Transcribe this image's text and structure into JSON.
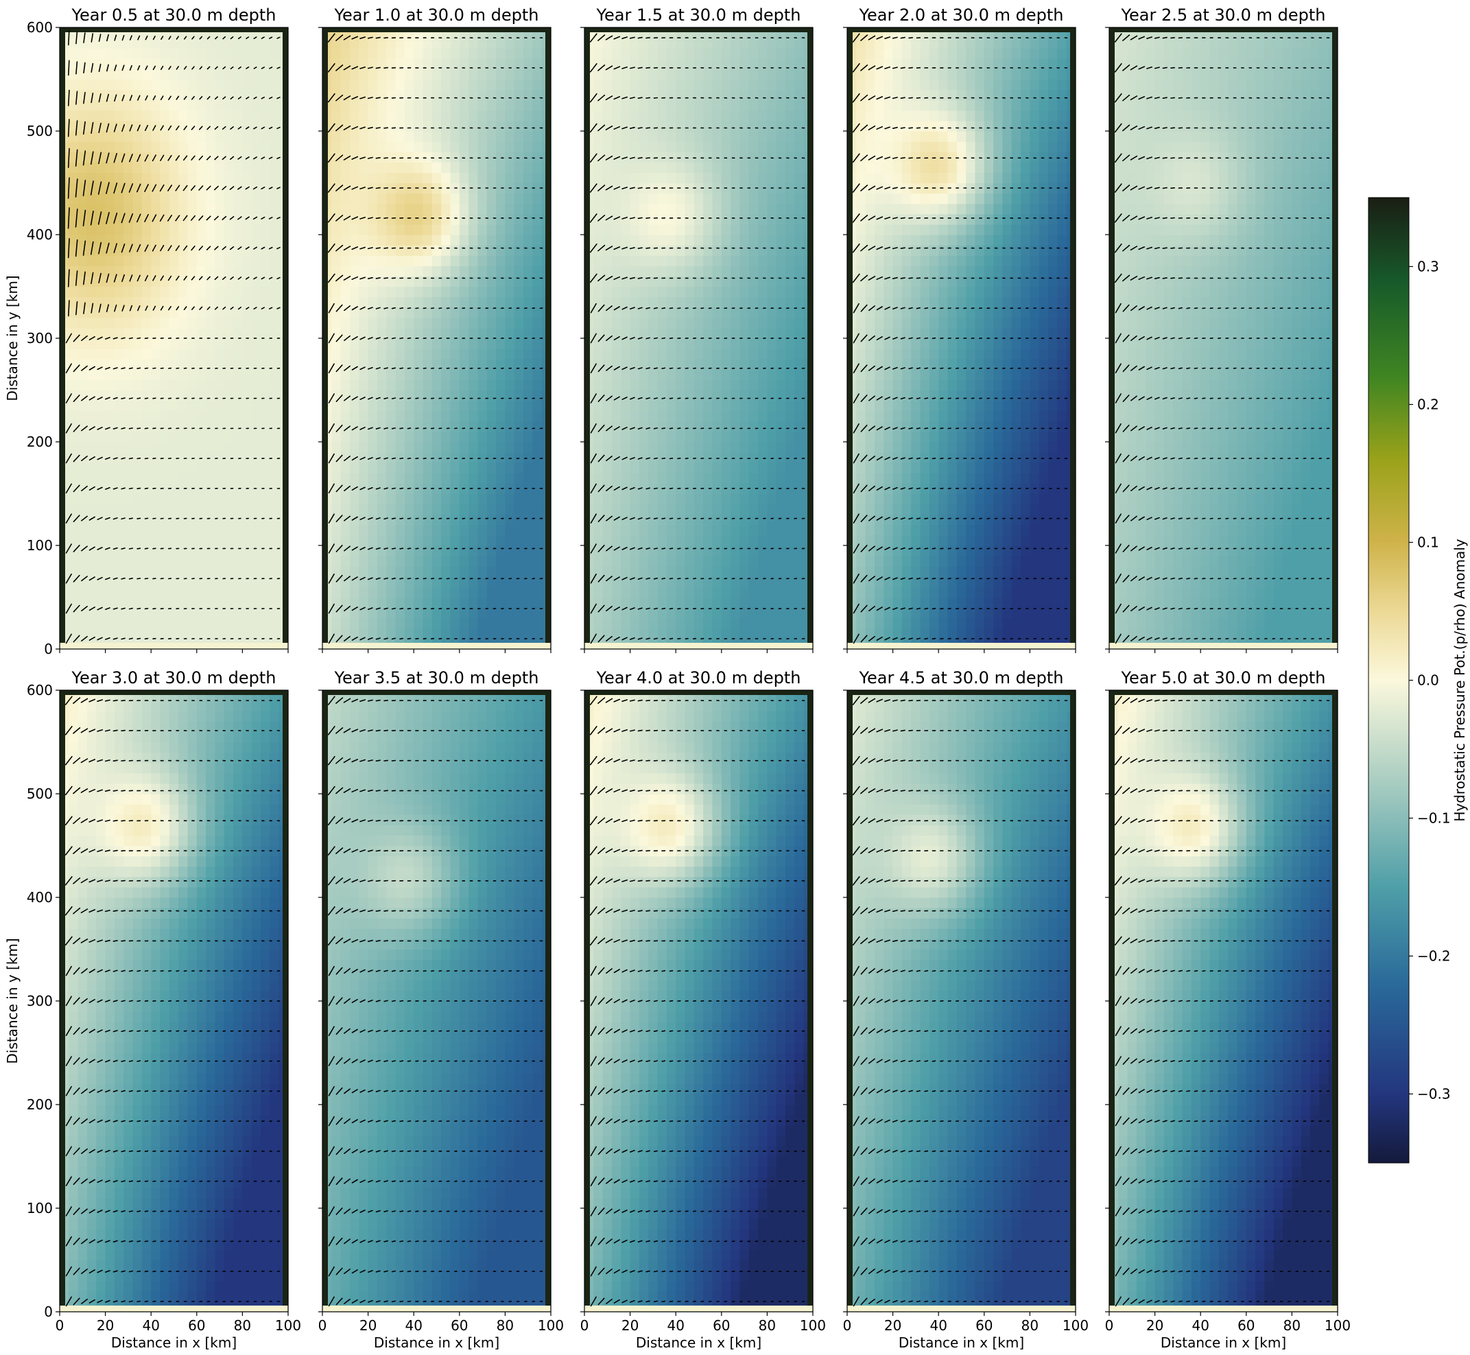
{
  "chart_data": {
    "type": "heatmap",
    "description_of_grid": "10 small-multiple panels (2 rows x 5 columns), each a filled color map of hydrostatic pressure potential anomaly with an overlaid velocity quiver field, sharing one colorbar",
    "panels": [
      {
        "title": "Year 0.5 at 30.0 m depth",
        "year": 0.5,
        "anomaly_range": [
          0.0,
          0.1
        ],
        "warm_core": {
          "x": 20,
          "y": 420
        },
        "eastern_boundary_min": -0.02
      },
      {
        "title": "Year 1.0 at 30.0 m depth",
        "year": 1.0,
        "anomaly_range": [
          -0.2,
          0.06
        ],
        "warm_core": {
          "x": 40,
          "y": 420
        },
        "eastern_boundary_min": -0.2
      },
      {
        "title": "Year 1.5 at 30.0 m depth",
        "year": 1.5,
        "anomaly_range": [
          -0.17,
          0.0
        ],
        "warm_core": {
          "x": 35,
          "y": 420
        },
        "eastern_boundary_min": -0.17
      },
      {
        "title": "Year 2.0 at 30.0 m depth",
        "year": 2.0,
        "anomaly_range": [
          -0.3,
          0.04
        ],
        "warm_core": {
          "x": 38,
          "y": 468
        },
        "eastern_boundary_min": -0.3
      },
      {
        "title": "Year 2.5 at 30.0 m depth",
        "year": 2.5,
        "anomaly_range": [
          -0.15,
          -0.03
        ],
        "warm_core": {
          "x": 35,
          "y": 450
        },
        "eastern_boundary_min": -0.15
      },
      {
        "title": "Year 3.0 at 30.0 m depth",
        "year": 3.0,
        "anomaly_range": [
          -0.3,
          0.02
        ],
        "warm_core": {
          "x": 35,
          "y": 470
        },
        "eastern_boundary_min": -0.3
      },
      {
        "title": "Year 3.5 at 30.0 m depth",
        "year": 3.5,
        "anomaly_range": [
          -0.25,
          -0.05
        ],
        "warm_core": {
          "x": 35,
          "y": 420
        },
        "eastern_boundary_min": -0.25
      },
      {
        "title": "Year 4.0 at 30.0 m depth",
        "year": 4.0,
        "anomaly_range": [
          -0.32,
          0.02
        ],
        "warm_core": {
          "x": 35,
          "y": 470
        },
        "eastern_boundary_min": -0.32
      },
      {
        "title": "Year 4.5 at 30.0 m depth",
        "year": 4.5,
        "anomaly_range": [
          -0.28,
          -0.02
        ],
        "warm_core": {
          "x": 35,
          "y": 440
        },
        "eastern_boundary_min": -0.28
      },
      {
        "title": "Year 5.0 at 30.0 m depth",
        "year": 5.0,
        "anomaly_range": [
          -0.32,
          0.02
        ],
        "warm_core": {
          "x": 35,
          "y": 470
        },
        "eastern_boundary_min": -0.32
      }
    ],
    "xlabel": "Distance in x [km]",
    "ylabel": "Distance in y [km]",
    "xlim": [
      0,
      100
    ],
    "ylim": [
      0,
      600
    ],
    "xticks": [
      0,
      20,
      40,
      60,
      80,
      100
    ],
    "yticks": [
      0,
      100,
      200,
      300,
      400,
      500,
      600
    ],
    "colorbar": {
      "label": "Hydrostatic Pressure Pot.(p/rho) Anomaly",
      "range": [
        -0.35,
        0.35
      ],
      "ticks": [
        -0.3,
        -0.2,
        -0.1,
        0.0,
        0.1,
        0.2,
        0.3
      ],
      "tick_labels": [
        "−0.3",
        "−0.2",
        "−0.1",
        "0.0",
        "0.1",
        "0.2",
        "0.3"
      ],
      "colormap": "diverging: deep navy (-0.35) → blue → teal → pale cream (0) → gold → olive → dark green-black (+0.35)",
      "stops": [
        {
          "v": -0.35,
          "color": "#141a3c"
        },
        {
          "v": -0.3,
          "color": "#23367e"
        },
        {
          "v": -0.22,
          "color": "#2a6a9a"
        },
        {
          "v": -0.15,
          "color": "#4f9fa8"
        },
        {
          "v": -0.08,
          "color": "#a2c9bf"
        },
        {
          "v": 0.0,
          "color": "#fbf8dc"
        },
        {
          "v": 0.05,
          "color": "#ecd996"
        },
        {
          "v": 0.1,
          "color": "#cfb34a"
        },
        {
          "v": 0.16,
          "color": "#9aa21a"
        },
        {
          "v": 0.22,
          "color": "#3f8522"
        },
        {
          "v": 0.29,
          "color": "#17592a"
        },
        {
          "v": 0.35,
          "color": "#1a1e14"
        }
      ]
    },
    "overlay": "velocity quiver arrows (black) on a regular grid in every panel",
    "colors": {
      "frame": "#1a2414",
      "bottom_strip": "#f6f3d0"
    }
  }
}
